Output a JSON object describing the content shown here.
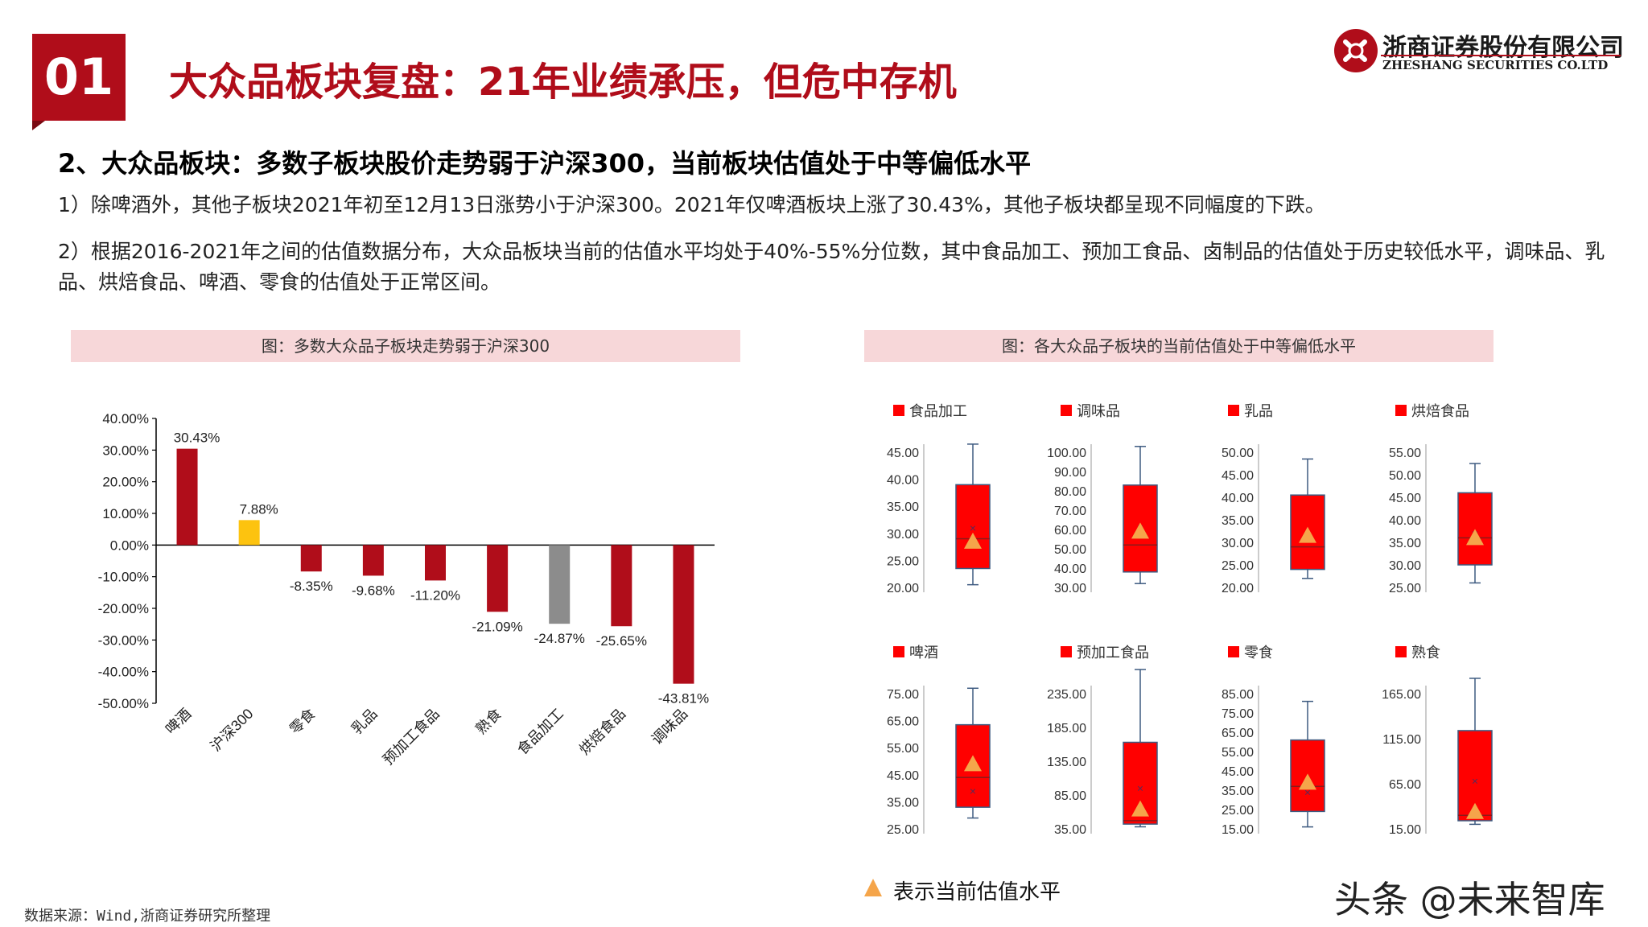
{
  "header": {
    "section_number": "01",
    "title": "大众品板块复盘：21年业绩承压，但危中存机",
    "logo_cn": "浙商证券股份有限公司",
    "logo_en": "ZHESHANG SECURITIES CO.LTD"
  },
  "content": {
    "subtitle": "2、大众品板块：多数子板块股价走势弱于沪深300，当前板块估值处于中等偏低水平",
    "point1": "1）除啤酒外，其他子板块2021年初至12月13日涨势小于沪深300。2021年仅啤酒板块上涨了30.43%，其他子板块都呈现不同幅度的下跌。",
    "point2": "2）根据2016-2021年之间的估值数据分布，大众品板块当前的估值水平均处于40%-55%分位数，其中食品加工、预加工食品、卤制品的估值处于历史较低水平，调味品、乳品、烘焙食品、啤酒、零食的估值处于正常区间。"
  },
  "left_caption": "图：多数大众品子板块走势弱于沪深300",
  "right_caption": "图：各大众品子板块的当前估值处于中等偏低水平",
  "legend_note": "表示当前估值水平",
  "source": "数据来源：Wind,浙商证券研究所整理",
  "watermark": "头条 @未来智库",
  "colors": {
    "brand_red": "#b00d1a",
    "bar_red": "#b00d1a",
    "bar_yellow": "#fdc30f",
    "bar_gray": "#8c8c8c",
    "box_red": "#ff0000",
    "marker": "#f5a54a"
  },
  "chart_data": [
    {
      "type": "bar",
      "title": "图：多数大众品子板块走势弱于沪深300",
      "categories": [
        "啤酒",
        "沪深300",
        "零食",
        "乳品",
        "预加工食品",
        "熟食",
        "食品加工",
        "烘焙食品",
        "调味品"
      ],
      "values": [
        30.43,
        7.88,
        -8.35,
        -9.68,
        -11.2,
        -21.09,
        -24.87,
        -25.65,
        -43.81
      ],
      "value_labels": [
        "30.43%",
        "7.88%",
        "-8.35%",
        "-9.68%",
        "-11.20%",
        "-21.09%",
        "-24.87%",
        "-25.65%",
        "-43.81%"
      ],
      "ylim": [
        -50,
        40
      ],
      "yticks": [
        "40.00%",
        "30.00%",
        "20.00%",
        "10.00%",
        "0.00%",
        "-10.00%",
        "-20.00%",
        "-30.00%",
        "-40.00%",
        "-50.00%"
      ],
      "bar_colors": [
        "red",
        "yellow",
        "red",
        "red",
        "red",
        "red",
        "gray",
        "red",
        "red"
      ]
    },
    {
      "type": "box",
      "title": "图：各大众品子板块的当前估值处于中等偏低水平",
      "panels": [
        {
          "name": "食品加工",
          "ymin": 20,
          "ymax": 45,
          "ticks": [
            "45.00",
            "40.00",
            "35.00",
            "30.00",
            "25.00",
            "20.00"
          ],
          "whisker_low": 20.5,
          "q1": 23.5,
          "median": 29,
          "mean": 31,
          "q3": 39,
          "whisker_high": 46.5,
          "current": 28.5
        },
        {
          "name": "调味品",
          "ymin": 30,
          "ymax": 100,
          "ticks": [
            "100.00",
            "90.00",
            "80.00",
            "70.00",
            "60.00",
            "50.00",
            "40.00",
            "30.00"
          ],
          "whisker_low": 32,
          "q1": 38,
          "median": 52,
          "mean": 61,
          "q3": 83,
          "whisker_high": 103,
          "current": 59
        },
        {
          "name": "乳品",
          "ymin": 20,
          "ymax": 50,
          "ticks": [
            "50.00",
            "45.00",
            "40.00",
            "35.00",
            "30.00",
            "25.00",
            "20.00"
          ],
          "whisker_low": 22,
          "q1": 24,
          "median": 29,
          "mean": 31,
          "q3": 40.5,
          "whisker_high": 48.5,
          "current": 31.5
        },
        {
          "name": "烘焙食品",
          "ymin": 25,
          "ymax": 55,
          "ticks": [
            "55.00",
            "50.00",
            "45.00",
            "40.00",
            "35.00",
            "30.00",
            "25.00"
          ],
          "whisker_low": 26,
          "q1": 30,
          "median": 36,
          "mean": 37,
          "q3": 46,
          "whisker_high": 52.5,
          "current": 36
        },
        {
          "name": "啤酒",
          "ymin": 25,
          "ymax": 75,
          "ticks": [
            "75.00",
            "65.00",
            "55.00",
            "45.00",
            "35.00",
            "25.00"
          ],
          "whisker_low": 29,
          "q1": 33,
          "median": 44,
          "mean": 39,
          "q3": 63.5,
          "whisker_high": 77,
          "current": 49
        },
        {
          "name": "预加工食品",
          "ymin": 35,
          "ymax": 235,
          "ticks": [
            "235.00",
            "185.00",
            "135.00",
            "85.00",
            "35.00"
          ],
          "whisker_low": 38,
          "q1": 42,
          "median": 47,
          "mean": 95,
          "q3": 163,
          "whisker_high": 278,
          "current": 64
        },
        {
          "name": "零食",
          "ymin": 15,
          "ymax": 85,
          "ticks": [
            "85.00",
            "75.00",
            "65.00",
            "55.00",
            "45.00",
            "35.00",
            "25.00",
            "15.00"
          ],
          "whisker_low": 16,
          "q1": 24,
          "median": 37,
          "mean": 34,
          "q3": 61,
          "whisker_high": 81,
          "current": 39
        },
        {
          "name": "熟食",
          "ymin": 15,
          "ymax": 165,
          "ticks": [
            "165.00",
            "115.00",
            "65.00",
            "15.00"
          ],
          "whisker_low": 20,
          "q1": 24,
          "median": 30,
          "mean": 68,
          "q3": 124,
          "whisker_high": 182,
          "current": 34
        }
      ]
    }
  ]
}
